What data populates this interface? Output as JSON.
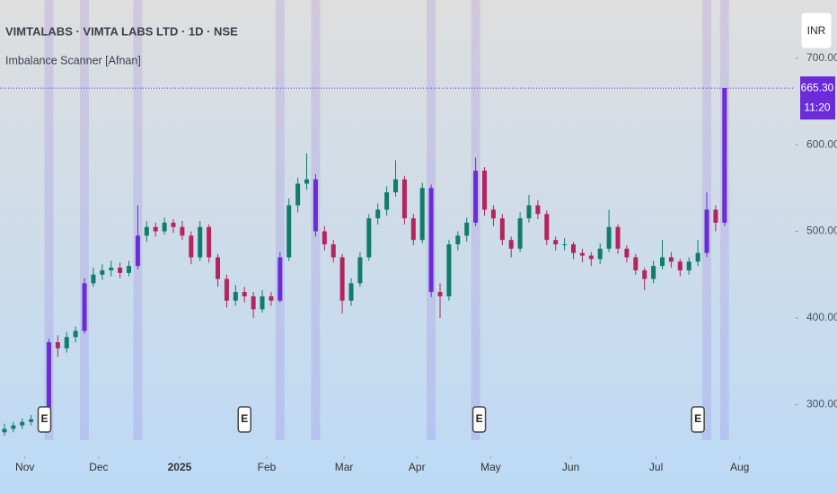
{
  "chart_data": {
    "type": "candlestick",
    "title": "VIMTALABS · VIMTA LABS LTD · 1D · NSE",
    "subtitle": "Imbalance Scanner [Afnan]",
    "currency": "INR",
    "last_price_label": "665.30",
    "countdown": "11:20",
    "open": [
      268,
      272,
      276,
      280,
      283,
      290,
      372,
      365,
      378,
      385,
      440,
      450,
      455,
      458,
      452,
      460,
      495,
      505,
      500,
      510,
      505,
      495,
      470,
      505,
      470,
      445,
      420,
      430,
      425,
      410,
      425,
      420,
      470,
      530,
      555,
      560,
      500,
      485,
      470,
      420,
      440,
      470,
      515,
      525,
      545,
      560,
      515,
      490,
      550,
      430,
      425,
      485,
      495,
      510,
      570,
      525,
      515,
      490,
      480,
      515,
      530,
      520,
      490,
      485,
      485,
      475,
      472,
      468,
      480,
      505,
      480,
      470,
      455,
      445,
      460,
      470,
      465,
      455,
      465,
      475,
      525,
      510
    ],
    "high": [
      278,
      280,
      284,
      288,
      296,
      376,
      380,
      384,
      390,
      446,
      458,
      462,
      466,
      464,
      466,
      530,
      512,
      510,
      516,
      514,
      512,
      500,
      512,
      508,
      474,
      450,
      438,
      436,
      430,
      432,
      430,
      476,
      538,
      562,
      590,
      566,
      506,
      490,
      474,
      446,
      476,
      520,
      532,
      552,
      582,
      564,
      520,
      556,
      554,
      440,
      490,
      500,
      516,
      585,
      574,
      530,
      520,
      494,
      522,
      542,
      536,
      524,
      494,
      492,
      488,
      480,
      476,
      486,
      525,
      508,
      484,
      474,
      458,
      466,
      490,
      476,
      468,
      470,
      490,
      545,
      530,
      665.3
    ],
    "low": [
      264,
      268,
      272,
      276,
      280,
      288,
      355,
      360,
      372,
      382,
      436,
      444,
      448,
      446,
      448,
      456,
      488,
      494,
      496,
      498,
      490,
      462,
      466,
      464,
      436,
      412,
      414,
      418,
      400,
      406,
      414,
      418,
      466,
      522,
      548,
      494,
      478,
      464,
      405,
      414,
      436,
      466,
      508,
      518,
      540,
      508,
      484,
      486,
      424,
      400,
      420,
      478,
      488,
      506,
      518,
      506,
      484,
      470,
      476,
      510,
      514,
      484,
      478,
      478,
      468,
      464,
      460,
      462,
      476,
      474,
      464,
      450,
      432,
      440,
      456,
      458,
      448,
      450,
      460,
      470,
      500,
      506
    ],
    "close": [
      272,
      276,
      280,
      283,
      290,
      372,
      365,
      378,
      385,
      440,
      450,
      455,
      458,
      452,
      460,
      495,
      505,
      500,
      510,
      505,
      495,
      470,
      505,
      470,
      445,
      420,
      430,
      425,
      410,
      425,
      420,
      470,
      530,
      555,
      560,
      500,
      485,
      470,
      420,
      440,
      470,
      515,
      525,
      545,
      560,
      515,
      490,
      550,
      430,
      425,
      485,
      495,
      510,
      570,
      525,
      515,
      490,
      480,
      515,
      530,
      520,
      490,
      485,
      485,
      475,
      472,
      468,
      480,
      505,
      480,
      470,
      455,
      445,
      460,
      470,
      465,
      455,
      465,
      475,
      525,
      510,
      665.3
    ],
    "highlights": [
      5,
      9,
      15,
      31,
      35,
      48,
      53,
      79,
      81
    ],
    "up_color": "#0f7c6c",
    "down_color": "#b5245c",
    "highlight_color": "#6c2bd9",
    "events": [
      {
        "index": 4.5,
        "label": "E"
      },
      {
        "index": 27,
        "label": "E"
      },
      {
        "index": 53.4,
        "label": "E"
      },
      {
        "index": 78,
        "label": "E"
      }
    ],
    "xlim": [
      -0.5,
      88.9
    ],
    "xticks": [
      {
        "value": 2.3,
        "label": "Nov"
      },
      {
        "value": 10.6,
        "label": "Dec"
      },
      {
        "value": 19.7,
        "label": "2025"
      },
      {
        "value": 29.5,
        "label": "Feb"
      },
      {
        "value": 38.2,
        "label": "Mar"
      },
      {
        "value": 46.4,
        "label": "Apr"
      },
      {
        "value": 54.7,
        "label": "May"
      },
      {
        "value": 63.7,
        "label": "Jun"
      },
      {
        "value": 73.3,
        "label": "Jul"
      },
      {
        "value": 82.7,
        "label": "Aug"
      }
    ],
    "ylim": [
      259,
      767
    ],
    "yticks": [
      {
        "value": 300,
        "label": "300.00"
      },
      {
        "value": 400,
        "label": "400.00"
      },
      {
        "value": 500,
        "label": "500.00"
      },
      {
        "value": 600,
        "label": "600.00"
      },
      {
        "value": 700,
        "label": "700.00"
      }
    ]
  }
}
